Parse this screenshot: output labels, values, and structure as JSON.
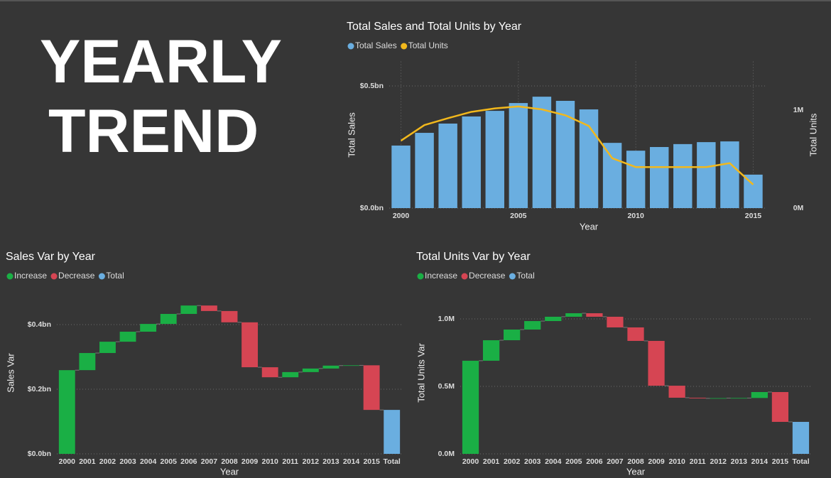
{
  "header": {
    "title_lines": [
      "YEARLY",
      "TREND"
    ]
  },
  "chart_data": [
    {
      "type": "combo",
      "title": "Total Sales and Total Units by Year",
      "x_label": "Year",
      "y_label": "Total Sales",
      "y2_label": "Total Units",
      "x": [
        2000,
        2001,
        2002,
        2003,
        2004,
        2005,
        2006,
        2007,
        2008,
        2009,
        2010,
        2011,
        2012,
        2013,
        2014,
        2015
      ],
      "xlim": [
        1999.5,
        2015.5
      ],
      "xticks": [
        2000,
        2005,
        2010,
        2015
      ],
      "ylim": [
        0,
        0.6
      ],
      "yticks": [
        {
          "value": 0,
          "label": "$0.0bn"
        },
        {
          "value": 0.5,
          "label": "$0.5bn"
        }
      ],
      "y2lim": [
        0,
        1.5
      ],
      "y2ticks": [
        {
          "value": 0,
          "label": "0M"
        },
        {
          "value": 1,
          "label": "1M"
        }
      ],
      "grid": true,
      "series": [
        {
          "name": "Total Sales",
          "type": "bar",
          "color": "#6aaee0",
          "values": [
            0.256,
            0.308,
            0.346,
            0.375,
            0.398,
            0.43,
            0.456,
            0.439,
            0.404,
            0.267,
            0.235,
            0.25,
            0.262,
            0.27,
            0.273,
            0.137
          ]
        },
        {
          "name": "Total Units",
          "type": "line",
          "axis": "y2",
          "color": "#f2b81c",
          "values": [
            0.69,
            0.85,
            0.92,
            0.985,
            1.02,
            1.04,
            1.01,
            0.95,
            0.84,
            0.51,
            0.42,
            0.42,
            0.42,
            0.42,
            0.46,
            0.24
          ]
        }
      ]
    },
    {
      "type": "waterfall",
      "title": "Sales Var by Year",
      "x_label": "Year",
      "y_label": "Sales Var",
      "legend": [
        {
          "name": "Increase",
          "color": "#1aaf45"
        },
        {
          "name": "Decrease",
          "color": "#d64553"
        },
        {
          "name": "Total",
          "color": "#6aaee0"
        }
      ],
      "categories": [
        "2000",
        "2001",
        "2002",
        "2003",
        "2004",
        "2005",
        "2006",
        "2007",
        "2008",
        "2009",
        "2010",
        "2011",
        "2012",
        "2013",
        "2014",
        "2015",
        "Total"
      ],
      "values": [
        0.259,
        0.053,
        0.035,
        0.031,
        0.024,
        0.031,
        0.026,
        -0.017,
        -0.035,
        -0.139,
        -0.031,
        0.016,
        0.011,
        0.009,
        0.001,
        -0.138,
        0.136
      ],
      "ylim": [
        0,
        0.5
      ],
      "yticks": [
        {
          "value": 0,
          "label": "$0.0bn"
        },
        {
          "value": 0.2,
          "label": "$0.2bn"
        },
        {
          "value": 0.4,
          "label": "$0.4bn"
        }
      ],
      "grid": true
    },
    {
      "type": "waterfall",
      "title": "Total Units Var by Year",
      "x_label": "Year",
      "y_label": "Total Units Var",
      "legend": [
        {
          "name": "Increase",
          "color": "#1aaf45"
        },
        {
          "name": "Decrease",
          "color": "#d64553"
        },
        {
          "name": "Total",
          "color": "#6aaee0"
        }
      ],
      "categories": [
        "2000",
        "2001",
        "2002",
        "2003",
        "2004",
        "2005",
        "2006",
        "2007",
        "2008",
        "2009",
        "2010",
        "2011",
        "2012",
        "2013",
        "2014",
        "2015",
        "Total"
      ],
      "values": [
        0.69,
        0.152,
        0.079,
        0.063,
        0.032,
        0.026,
        -0.026,
        -0.079,
        -0.1,
        -0.332,
        -0.089,
        -0.005,
        0.002,
        0.001,
        0.044,
        -0.221,
        0.237
      ],
      "ylim": [
        0,
        1.2
      ],
      "yticks": [
        {
          "value": 0,
          "label": "0.0M"
        },
        {
          "value": 0.5,
          "label": "0.5M"
        },
        {
          "value": 1,
          "label": "1.0M"
        }
      ],
      "grid": true
    }
  ]
}
